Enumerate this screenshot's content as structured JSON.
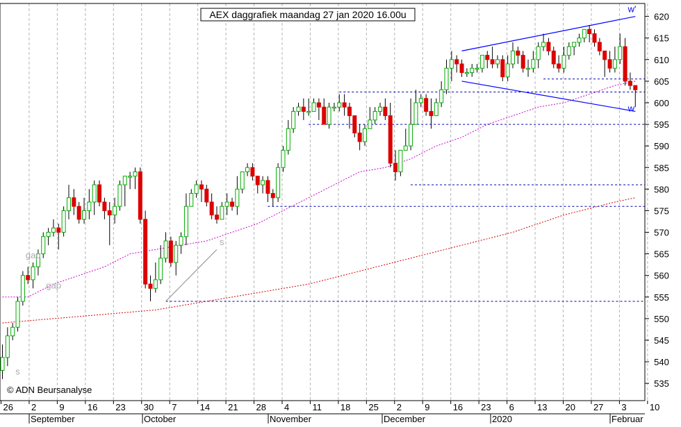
{
  "chart_data": {
    "type": "candlestick",
    "title": "AEX daggrafiek maandag 27 jan 2020 16.00u",
    "copyright": "© ADN Beursanalyse",
    "ylim": [
      531,
      623
    ],
    "y_ticks": [
      535,
      540,
      545,
      550,
      555,
      560,
      565,
      570,
      575,
      580,
      585,
      590,
      595,
      600,
      605,
      610,
      615,
      620
    ],
    "x_day_labels": [
      "26",
      "2",
      "9",
      "16",
      "23",
      "30",
      "7",
      "14",
      "21",
      "28",
      "4",
      "11",
      "18",
      "25",
      "2",
      "9",
      "16",
      "23",
      "6",
      "13",
      "20",
      "27",
      "3",
      "10"
    ],
    "month_labels": [
      "September",
      "October",
      "November",
      "December",
      "2020",
      "Februar"
    ],
    "colors": {
      "up": "#00aa00",
      "down": "#dd0000",
      "support": "#0000aa",
      "trend": "#0000ff",
      "ma_short": "#cc00cc",
      "ma_long": "#cc0000",
      "grid": "#b4b4b4"
    },
    "annotations": [
      {
        "text": "gap",
        "x_index": 4,
        "y": 564
      },
      {
        "text": "gap",
        "x_index": 8,
        "y": 557
      },
      {
        "text": "s",
        "x_index": 2,
        "y": 537
      },
      {
        "text": "s",
        "x_index": 42,
        "y": 567
      },
      {
        "text": "w'",
        "x_index": 122,
        "y": 621
      },
      {
        "text": "w",
        "x_index": 122,
        "y": 598
      }
    ],
    "candles": [
      [
        538,
        541,
        544,
        536
      ],
      [
        541,
        546,
        548,
        539
      ],
      [
        546,
        548,
        549,
        545
      ],
      [
        548,
        554,
        555,
        547
      ],
      [
        554,
        560,
        561,
        553
      ],
      [
        560,
        559,
        562,
        558
      ],
      [
        559,
        562,
        563,
        557
      ],
      [
        562,
        565,
        566,
        560
      ],
      [
        565,
        569,
        570,
        564
      ],
      [
        569,
        570,
        571,
        567
      ],
      [
        570,
        571,
        573,
        569
      ],
      [
        571,
        570,
        572,
        566
      ],
      [
        570,
        575,
        576,
        569
      ],
      [
        575,
        578,
        581,
        573
      ],
      [
        578,
        576,
        580,
        574
      ],
      [
        576,
        573,
        577,
        572
      ],
      [
        573,
        575,
        578,
        572
      ],
      [
        575,
        577,
        580,
        573
      ],
      [
        577,
        581,
        582,
        574
      ],
      [
        581,
        577,
        582,
        576
      ],
      [
        577,
        575,
        578,
        573
      ],
      [
        575,
        574,
        577,
        567
      ],
      [
        574,
        576,
        578,
        572
      ],
      [
        576,
        581,
        582,
        575
      ],
      [
        581,
        583,
        583,
        576
      ],
      [
        583,
        583,
        584,
        580
      ],
      [
        583,
        584,
        585,
        580
      ],
      [
        584,
        573,
        585,
        572
      ],
      [
        573,
        558,
        575,
        557
      ],
      [
        558,
        557,
        560,
        554
      ],
      [
        557,
        559,
        563,
        556
      ],
      [
        559,
        564,
        567,
        558
      ],
      [
        564,
        568,
        570,
        563
      ],
      [
        568,
        563,
        569,
        562
      ],
      [
        563,
        567,
        568,
        560
      ],
      [
        567,
        569,
        570,
        565
      ],
      [
        569,
        576,
        579,
        567
      ],
      [
        576,
        579,
        580,
        576
      ],
      [
        579,
        581,
        582,
        578
      ],
      [
        581,
        580,
        582,
        577
      ],
      [
        580,
        577,
        581,
        576
      ],
      [
        577,
        574,
        579,
        573
      ],
      [
        574,
        573,
        576,
        572
      ],
      [
        573,
        576,
        577,
        573
      ],
      [
        576,
        577,
        579,
        574
      ],
      [
        577,
        576,
        578,
        575
      ],
      [
        576,
        580,
        583,
        574
      ],
      [
        580,
        584,
        584,
        579
      ],
      [
        584,
        585,
        586,
        583
      ],
      [
        585,
        583,
        586,
        582
      ],
      [
        583,
        581,
        583,
        579
      ],
      [
        581,
        582,
        583,
        579
      ],
      [
        582,
        579,
        583,
        577
      ],
      [
        579,
        578,
        580,
        576
      ],
      [
        578,
        585,
        586,
        577
      ],
      [
        585,
        589,
        590,
        584
      ],
      [
        589,
        594,
        596,
        588
      ],
      [
        594,
        598,
        599,
        593
      ],
      [
        598,
        599,
        600,
        597
      ],
      [
        599,
        598,
        601,
        596
      ],
      [
        598,
        598,
        601,
        597
      ],
      [
        598,
        600,
        601,
        598
      ],
      [
        600,
        599,
        601,
        596
      ],
      [
        599,
        595,
        601,
        595
      ],
      [
        595,
        599,
        600,
        594
      ],
      [
        599,
        599,
        600,
        598
      ],
      [
        599,
        600,
        602,
        598
      ],
      [
        600,
        599,
        602,
        597
      ],
      [
        599,
        597,
        600,
        594
      ],
      [
        597,
        593,
        597,
        592
      ],
      [
        593,
        591,
        595,
        589
      ],
      [
        591,
        594,
        595,
        590
      ],
      [
        594,
        596,
        599,
        594
      ],
      [
        596,
        598,
        599,
        595
      ],
      [
        598,
        599,
        600,
        597
      ],
      [
        599,
        597,
        601,
        596
      ],
      [
        597,
        586,
        600,
        585
      ],
      [
        586,
        584,
        589,
        582
      ],
      [
        584,
        589,
        589,
        583
      ],
      [
        589,
        590,
        594,
        589
      ],
      [
        590,
        595,
        601,
        589
      ],
      [
        595,
        600,
        603,
        595
      ],
      [
        600,
        601,
        602,
        599
      ],
      [
        601,
        598,
        602,
        597
      ],
      [
        598,
        597,
        601,
        594
      ],
      [
        597,
        600,
        601,
        597
      ],
      [
        600,
        603,
        605,
        599
      ],
      [
        603,
        608,
        610,
        602
      ],
      [
        608,
        610,
        612,
        605
      ],
      [
        610,
        609,
        611,
        607
      ],
      [
        609,
        607,
        610,
        606
      ],
      [
        607,
        607,
        608,
        606
      ],
      [
        607,
        608,
        609,
        606
      ],
      [
        608,
        608,
        609,
        607
      ],
      [
        608,
        611,
        611,
        607
      ],
      [
        611,
        610,
        612,
        608
      ],
      [
        610,
        609,
        613,
        608
      ],
      [
        609,
        610,
        611,
        608
      ],
      [
        610,
        606,
        611,
        605
      ],
      [
        606,
        609,
        611,
        605
      ],
      [
        609,
        612,
        614,
        608
      ],
      [
        612,
        611,
        613,
        609
      ],
      [
        611,
        608,
        612,
        607
      ],
      [
        608,
        608,
        610,
        606
      ],
      [
        608,
        610,
        612,
        607
      ],
      [
        610,
        613,
        614,
        608
      ],
      [
        613,
        614,
        616,
        612
      ],
      [
        614,
        612,
        615,
        611
      ],
      [
        612,
        609,
        613,
        608
      ],
      [
        609,
        608,
        611,
        607
      ],
      [
        608,
        611,
        613,
        607
      ],
      [
        611,
        613,
        614,
        610
      ],
      [
        613,
        614,
        614,
        611
      ],
      [
        614,
        615,
        616,
        613
      ],
      [
        615,
        617,
        617,
        614
      ],
      [
        617,
        616,
        618,
        614
      ],
      [
        616,
        614,
        617,
        613
      ],
      [
        614,
        612,
        615,
        611
      ],
      [
        612,
        610,
        612,
        606
      ],
      [
        610,
        608,
        612,
        607
      ],
      [
        608,
        610,
        613,
        607
      ],
      [
        610,
        613,
        616,
        609
      ],
      [
        613,
        605,
        615,
        604
      ],
      [
        605,
        604,
        607,
        603
      ],
      [
        604,
        603,
        604,
        599
      ]
    ],
    "ma_short": [
      [
        0,
        555
      ],
      [
        5,
        555
      ],
      [
        10,
        558
      ],
      [
        15,
        560
      ],
      [
        20,
        562
      ],
      [
        25,
        565
      ],
      [
        30,
        566
      ],
      [
        35,
        567
      ],
      [
        40,
        568
      ],
      [
        45,
        570
      ],
      [
        50,
        572
      ],
      [
        55,
        575
      ],
      [
        60,
        578
      ],
      [
        65,
        581
      ],
      [
        70,
        584
      ],
      [
        75,
        585
      ],
      [
        80,
        587
      ],
      [
        85,
        590
      ],
      [
        90,
        592
      ],
      [
        95,
        595
      ],
      [
        100,
        597
      ],
      [
        105,
        599
      ],
      [
        110,
        600
      ],
      [
        115,
        602
      ],
      [
        120,
        604
      ],
      [
        124,
        605
      ]
    ],
    "ma_long": [
      [
        0,
        549
      ],
      [
        10,
        550
      ],
      [
        20,
        551
      ],
      [
        30,
        552
      ],
      [
        40,
        554
      ],
      [
        50,
        556
      ],
      [
        60,
        558
      ],
      [
        70,
        561
      ],
      [
        80,
        564
      ],
      [
        90,
        567
      ],
      [
        100,
        570
      ],
      [
        110,
        574
      ],
      [
        120,
        577
      ],
      [
        124,
        578
      ]
    ],
    "support_lines": [
      {
        "y": 554,
        "from_index": 32,
        "to_index": 133
      },
      {
        "y": 576,
        "from_index": 52,
        "to_index": 133
      },
      {
        "y": 581,
        "from_index": 80,
        "to_index": 133
      },
      {
        "y": 595,
        "from_index": 60,
        "to_index": 133
      },
      {
        "y": 602.5,
        "from_index": 66,
        "to_index": 133
      },
      {
        "y": 605.5,
        "from_index": 106,
        "to_index": 133
      }
    ],
    "trend_lines": [
      {
        "name": "w'",
        "from": [
          90,
          612
        ],
        "to": [
          124,
          620
        ]
      },
      {
        "name": "w",
        "from": [
          90,
          605
        ],
        "to": [
          124,
          598
        ]
      },
      {
        "name": "s",
        "from": [
          32,
          554
        ],
        "to": [
          42,
          566
        ]
      }
    ]
  }
}
